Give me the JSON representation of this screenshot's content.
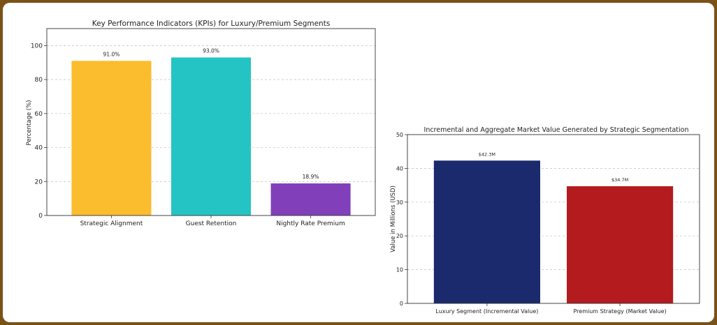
{
  "chart_data": [
    {
      "type": "bar",
      "title": "Key Performance Indicators (KPIs) for Luxury/Premium Segments",
      "ylabel": "Percentage (%)",
      "xlabel": "",
      "ylim": [
        0,
        110
      ],
      "yticks": [
        0,
        20,
        40,
        60,
        80,
        100
      ],
      "grid": "horizontal dashed",
      "categories": [
        "Strategic Alignment",
        "Guest Retention",
        "Nightly Rate Premium"
      ],
      "values": [
        91.0,
        93.0,
        18.9
      ],
      "data_labels": [
        "91.0%",
        "93.0%",
        "18.9%"
      ],
      "colors": [
        "#fbbc2d",
        "#24c4c4",
        "#8140ba"
      ]
    },
    {
      "type": "bar",
      "title": "Incremental and Aggregate Market Value Generated by Strategic Segmentation",
      "ylabel": "Value in Millions (USD)",
      "xlabel": "",
      "ylim": [
        0,
        50
      ],
      "yticks": [
        0,
        10,
        20,
        30,
        40,
        50
      ],
      "grid": "horizontal dashed",
      "categories": [
        "Luxury Segment (Incremental Value)",
        "Premium Strategy (Market Value)"
      ],
      "values": [
        42.3,
        34.7
      ],
      "data_labels": [
        "$42.3M",
        "$34.7M"
      ],
      "colors": [
        "#1a2a6c",
        "#b31b1f"
      ]
    }
  ]
}
